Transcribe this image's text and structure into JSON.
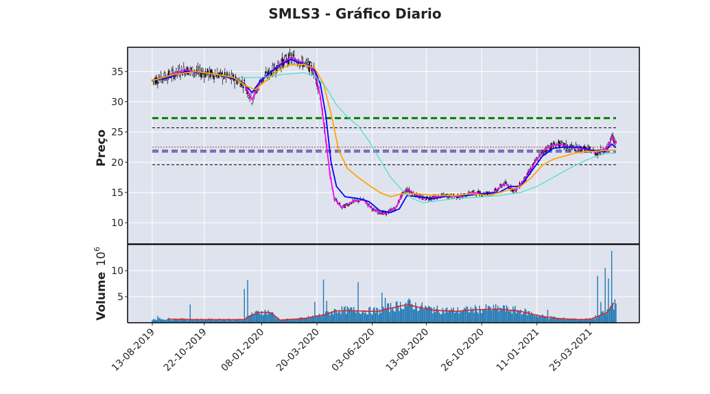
{
  "chart_data": {
    "type": "candlestick",
    "title": "SMLS3 - Gráfico Diario",
    "price_panel": {
      "ylabel": "Preço",
      "ylim": [
        6.5,
        39
      ],
      "yticks": [
        10,
        15,
        20,
        25,
        30,
        35
      ],
      "grid": true,
      "horizontal_lines": [
        {
          "value": 27.3,
          "color": "#008000",
          "style": "dashed-thick"
        },
        {
          "value": 25.7,
          "color": "#000000",
          "style": "dashed-thin"
        },
        {
          "value": 22.5,
          "color": "#d62728",
          "style": "dotted-thin"
        },
        {
          "value": 21.9,
          "color": "#1f77b4",
          "style": "dashed-thick"
        },
        {
          "value": 21.75,
          "color": "#9467bd",
          "style": "dashed-thick"
        },
        {
          "value": 19.6,
          "color": "#000000",
          "style": "dashed-thin"
        }
      ],
      "moving_averages": [
        {
          "color": "#ff00ff",
          "points": [
            [
              0,
              33.5
            ],
            [
              15,
              34.3
            ],
            [
              30,
              35.3
            ],
            [
              45,
              34.8
            ],
            [
              60,
              34.5
            ],
            [
              75,
              33.8
            ],
            [
              85,
              33.0
            ],
            [
              92,
              30.3
            ],
            [
              100,
              33.4
            ],
            [
              110,
              35.0
            ],
            [
              120,
              36.5
            ],
            [
              128,
              37.3
            ],
            [
              135,
              36.8
            ],
            [
              145,
              35.8
            ],
            [
              150,
              35.0
            ],
            [
              155,
              31.0
            ],
            [
              160,
              24.0
            ],
            [
              164,
              18.0
            ],
            [
              168,
              14.0
            ],
            [
              175,
              12.5
            ],
            [
              185,
              13.5
            ],
            [
              195,
              13.8
            ],
            [
              205,
              12.0
            ],
            [
              215,
              11.5
            ],
            [
              225,
              12.5
            ],
            [
              230,
              14.5
            ],
            [
              235,
              15.5
            ],
            [
              240,
              15.0
            ],
            [
              250,
              14.0
            ],
            [
              260,
              14.2
            ],
            [
              270,
              14.5
            ],
            [
              285,
              14.3
            ],
            [
              295,
              15.0
            ],
            [
              305,
              14.8
            ],
            [
              315,
              15.0
            ],
            [
              325,
              16.5
            ],
            [
              335,
              15.3
            ],
            [
              345,
              17.5
            ],
            [
              355,
              20.5
            ],
            [
              365,
              22.5
            ],
            [
              375,
              23.0
            ],
            [
              385,
              22.5
            ],
            [
              395,
              22.3
            ],
            [
              405,
              22.0
            ],
            [
              410,
              21.5
            ],
            [
              415,
              22.0
            ],
            [
              420,
              22.5
            ],
            [
              425,
              24.2
            ],
            [
              428,
              23.0
            ]
          ]
        },
        {
          "color": "#0000ff",
          "points": [
            [
              0,
              33.5
            ],
            [
              15,
              34.0
            ],
            [
              30,
              35.0
            ],
            [
              45,
              34.8
            ],
            [
              60,
              34.5
            ],
            [
              75,
              33.8
            ],
            [
              85,
              33.0
            ],
            [
              92,
              31.5
            ],
            [
              100,
              33.5
            ],
            [
              110,
              35.0
            ],
            [
              120,
              36.3
            ],
            [
              128,
              37.0
            ],
            [
              135,
              36.5
            ],
            [
              145,
              36.0
            ],
            [
              150,
              35.2
            ],
            [
              155,
              33.0
            ],
            [
              160,
              28.0
            ],
            [
              165,
              20.0
            ],
            [
              170,
              16.0
            ],
            [
              178,
              14.3
            ],
            [
              190,
              14.0
            ],
            [
              200,
              13.5
            ],
            [
              210,
              12.0
            ],
            [
              220,
              11.7
            ],
            [
              228,
              12.3
            ],
            [
              235,
              14.5
            ],
            [
              245,
              14.3
            ],
            [
              260,
              14.0
            ],
            [
              275,
              14.5
            ],
            [
              290,
              14.5
            ],
            [
              305,
              14.8
            ],
            [
              320,
              15.0
            ],
            [
              330,
              16.0
            ],
            [
              340,
              16.0
            ],
            [
              350,
              18.5
            ],
            [
              360,
              21.0
            ],
            [
              370,
              22.3
            ],
            [
              380,
              22.5
            ],
            [
              395,
              22.5
            ],
            [
              405,
              22.0
            ],
            [
              410,
              21.8
            ],
            [
              418,
              21.8
            ],
            [
              424,
              23.0
            ],
            [
              428,
              22.4
            ]
          ]
        },
        {
          "color": "#ffa500",
          "points": [
            [
              0,
              33.5
            ],
            [
              20,
              34.5
            ],
            [
              40,
              35.0
            ],
            [
              60,
              34.5
            ],
            [
              75,
              34.0
            ],
            [
              88,
              32.5
            ],
            [
              95,
              32.0
            ],
            [
              105,
              33.5
            ],
            [
              115,
              35.0
            ],
            [
              125,
              36.0
            ],
            [
              140,
              36.2
            ],
            [
              150,
              35.5
            ],
            [
              158,
              33.0
            ],
            [
              165,
              28.0
            ],
            [
              172,
              22.0
            ],
            [
              180,
              19.0
            ],
            [
              190,
              17.5
            ],
            [
              200,
              16.2
            ],
            [
              210,
              15.0
            ],
            [
              220,
              14.3
            ],
            [
              230,
              14.8
            ],
            [
              245,
              14.8
            ],
            [
              260,
              14.5
            ],
            [
              280,
              14.5
            ],
            [
              295,
              14.8
            ],
            [
              310,
              14.5
            ],
            [
              325,
              15.2
            ],
            [
              340,
              16.0
            ],
            [
              350,
              17.5
            ],
            [
              360,
              19.5
            ],
            [
              370,
              20.5
            ],
            [
              380,
              21.0
            ],
            [
              390,
              21.5
            ],
            [
              400,
              21.8
            ],
            [
              410,
              21.8
            ],
            [
              420,
              22.0
            ],
            [
              428,
              22.0
            ]
          ]
        },
        {
          "color": "#40e0d0",
          "points": [
            [
              80,
              34.0
            ],
            [
              100,
              34.0
            ],
            [
              120,
              34.5
            ],
            [
              140,
              34.8
            ],
            [
              150,
              34.3
            ],
            [
              160,
              32.5
            ],
            [
              170,
              29.5
            ],
            [
              180,
              27.5
            ],
            [
              190,
              26.0
            ],
            [
              200,
              23.5
            ],
            [
              210,
              20.5
            ],
            [
              220,
              17.5
            ],
            [
              230,
              15.5
            ],
            [
              240,
              14.0
            ],
            [
              250,
              13.3
            ],
            [
              262,
              13.6
            ],
            [
              280,
              14.0
            ],
            [
              300,
              14.2
            ],
            [
              320,
              14.5
            ],
            [
              340,
              15.0
            ],
            [
              355,
              16.0
            ],
            [
              370,
              17.5
            ],
            [
              385,
              19.0
            ],
            [
              400,
              20.3
            ],
            [
              410,
              21.0
            ],
            [
              420,
              21.5
            ],
            [
              428,
              21.5
            ]
          ]
        }
      ]
    },
    "volume_panel": {
      "ylabel": "Volume",
      "scale_label": "10",
      "scale_exponent": "6",
      "ylim": [
        0,
        15
      ],
      "yticks": [
        5,
        10
      ],
      "sma_color": "#d62728",
      "sma_points": [
        [
          15,
          0.7
        ],
        [
          40,
          0.6
        ],
        [
          70,
          0.6
        ],
        [
          85,
          0.6
        ],
        [
          92,
          1.5
        ],
        [
          100,
          2.0
        ],
        [
          108,
          2.0
        ],
        [
          112,
          1.5
        ],
        [
          118,
          0.5
        ],
        [
          140,
          0.8
        ],
        [
          150,
          1.2
        ],
        [
          160,
          1.6
        ],
        [
          170,
          2.3
        ],
        [
          185,
          2.3
        ],
        [
          200,
          2.2
        ],
        [
          210,
          2.2
        ],
        [
          215,
          2.6
        ],
        [
          225,
          3.0
        ],
        [
          235,
          3.5
        ],
        [
          245,
          3.0
        ],
        [
          260,
          2.4
        ],
        [
          280,
          2.2
        ],
        [
          300,
          2.5
        ],
        [
          320,
          2.6
        ],
        [
          340,
          2.2
        ],
        [
          350,
          1.7
        ],
        [
          360,
          1.2
        ],
        [
          375,
          0.8
        ],
        [
          395,
          0.6
        ],
        [
          405,
          0.7
        ],
        [
          412,
          1.3
        ],
        [
          420,
          2.0
        ],
        [
          426,
          3.8
        ]
      ],
      "volume_spikes": [
        [
          5,
          1.3
        ],
        [
          35,
          3.5
        ],
        [
          85,
          6.5
        ],
        [
          88,
          8.2
        ],
        [
          92,
          2.0
        ],
        [
          110,
          2.0
        ],
        [
          150,
          4.0
        ],
        [
          158,
          8.3
        ],
        [
          161,
          4.2
        ],
        [
          190,
          7.8
        ],
        [
          212,
          5.8
        ],
        [
          215,
          4.8
        ],
        [
          260,
          3.0
        ],
        [
          325,
          3.3
        ],
        [
          365,
          2.5
        ],
        [
          411,
          9.0
        ],
        [
          414,
          4.0
        ],
        [
          418,
          10.5
        ],
        [
          421,
          8.5
        ],
        [
          424,
          13.8
        ],
        [
          426,
          2.5
        ]
      ]
    },
    "x_range": [
      0,
      428
    ],
    "x_ticks": [
      {
        "index": 0,
        "label": "13-08-2019"
      },
      {
        "index": 48,
        "label": "22-10-2019"
      },
      {
        "index": 101,
        "label": "08-01-2020"
      },
      {
        "index": 152,
        "label": "20-03-2020"
      },
      {
        "index": 203,
        "label": "03-06-2020"
      },
      {
        "index": 253,
        "label": "13-08-2020"
      },
      {
        "index": 304,
        "label": "26-10-2020"
      },
      {
        "index": 355,
        "label": "11-01-2021"
      },
      {
        "index": 404,
        "label": "25-03-2021"
      }
    ],
    "candle_color": "#000000",
    "volume_color": "#1f77b4",
    "background": "#dfe3ee"
  }
}
